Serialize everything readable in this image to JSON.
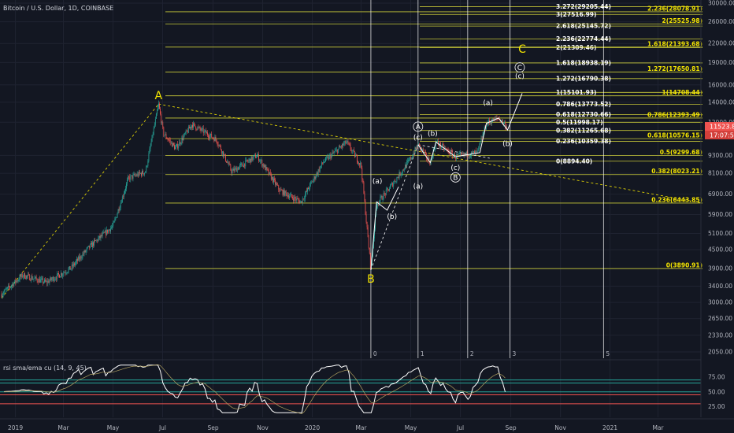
{
  "header": {
    "symbol": "Bitcoin / U.S. Dollar, 1D, COINBASE"
  },
  "price_tag": {
    "price": "11523.88",
    "countdown": "17:07:59"
  },
  "indicator": {
    "label": "rsi sma/ema cu (14, 9, 45)"
  },
  "colors": {
    "background": "#131722",
    "fib_line": "#c8c838",
    "fib_white": "#ffffff",
    "fib_yellow": "#f5e600",
    "up": "#26a69a",
    "down": "#ef5350",
    "rsi": "#ffffff",
    "rsi_upper": "#26a69a",
    "rsi_mid": "#ef5350"
  },
  "chart_data": {
    "type": "candlestick",
    "title": "Bitcoin / U.S. Dollar, 1D, COINBASE",
    "scale": "log",
    "ylim": [
      2050,
      30000
    ],
    "y_ticks": [
      "30000.00",
      "26000.00",
      "22000.00",
      "19000.00",
      "16000.00",
      "14000.00",
      "12000.00",
      "9300.00",
      "8100.00",
      "6900.00",
      "5900.00",
      "5100.00",
      "4500.00",
      "3900.00",
      "3400.00",
      "3000.00",
      "2650.00",
      "2330.00",
      "2050.00"
    ],
    "x_ticks": [
      "2019",
      "Mar",
      "May",
      "Jul",
      "Sep",
      "Nov",
      "2020",
      "Mar",
      "May",
      "Jul",
      "Sep",
      "Nov",
      "2021",
      "Mar"
    ],
    "price_path": [
      {
        "date": "2018-12-15",
        "price": 3200
      },
      {
        "date": "2019-01-10",
        "price": 3700
      },
      {
        "date": "2019-02-08",
        "price": 3500
      },
      {
        "date": "2019-03-10",
        "price": 3900
      },
      {
        "date": "2019-04-02",
        "price": 4600
      },
      {
        "date": "2019-05-01",
        "price": 5400
      },
      {
        "date": "2019-05-20",
        "price": 7800
      },
      {
        "date": "2019-06-10",
        "price": 8200
      },
      {
        "date": "2019-06-26",
        "price": 13800
      },
      {
        "date": "2019-07-02",
        "price": 11000
      },
      {
        "date": "2019-07-17",
        "price": 9800
      },
      {
        "date": "2019-08-06",
        "price": 11800
      },
      {
        "date": "2019-09-05",
        "price": 10500
      },
      {
        "date": "2019-09-24",
        "price": 8200
      },
      {
        "date": "2019-10-25",
        "price": 9300
      },
      {
        "date": "2019-11-22",
        "price": 7100
      },
      {
        "date": "2019-12-18",
        "price": 6500
      },
      {
        "date": "2020-01-14",
        "price": 8800
      },
      {
        "date": "2020-02-12",
        "price": 10300
      },
      {
        "date": "2020-03-01",
        "price": 8600
      },
      {
        "date": "2020-03-13",
        "price": 3850
      },
      {
        "date": "2020-03-20",
        "price": 6400
      },
      {
        "date": "2020-04-06",
        "price": 7300
      },
      {
        "date": "2020-04-29",
        "price": 8900
      },
      {
        "date": "2020-05-10",
        "price": 10100
      },
      {
        "date": "2020-05-25",
        "price": 8800
      },
      {
        "date": "2020-06-01",
        "price": 10300
      },
      {
        "date": "2020-06-25",
        "price": 9200
      },
      {
        "date": "2020-07-22",
        "price": 9500
      },
      {
        "date": "2020-08-02",
        "price": 11900
      },
      {
        "date": "2020-08-17",
        "price": 12400
      },
      {
        "date": "2020-08-28",
        "price": 11523.88
      }
    ],
    "fib_white": [
      {
        "label": "3.272(29205.44)",
        "value": 29205.44
      },
      {
        "label": "3(27516.99)",
        "value": 27516.99
      },
      {
        "label": "2.618(25145.72)",
        "value": 25145.72
      },
      {
        "label": "2.236(22774.44)",
        "value": 22774.44
      },
      {
        "label": "2(21309.46)",
        "value": 21309.46
      },
      {
        "label": "1.618(18938.19)",
        "value": 18938.19
      },
      {
        "label": "1.272(16790.38)",
        "value": 16790.38
      },
      {
        "label": "1(15101.93)",
        "value": 15101.93
      },
      {
        "label": "0.786(13773.52)",
        "value": 13773.52
      },
      {
        "label": "0.618(12730.66)",
        "value": 12730.66
      },
      {
        "label": "0.5(11998.17)",
        "value": 11998.17
      },
      {
        "label": "0.382(11265.68)",
        "value": 11265.68
      },
      {
        "label": "0.236(10359.38)",
        "value": 10359.38
      },
      {
        "label": "0(8894.40)",
        "value": 8894.4
      }
    ],
    "fib_yellow": [
      {
        "label": "2.236(28078.91)",
        "value": 28078.91
      },
      {
        "label": "2(25525.98)",
        "value": 25525.98
      },
      {
        "label": "1.618(21393.68)",
        "value": 21393.68
      },
      {
        "label": "1.272(17650.81)",
        "value": 17650.81
      },
      {
        "label": "1(14708.44)",
        "value": 14708.44
      },
      {
        "label": "0.786(12393.49)",
        "value": 12393.49
      },
      {
        "label": "0.618(10576.15)",
        "value": 10576.15
      },
      {
        "label": "0.5(9299.68)",
        "value": 9299.68
      },
      {
        "label": "0.382(8023.21)",
        "value": 8023.21
      },
      {
        "label": "0.236(6443.85)",
        "value": 6443.85
      },
      {
        "label": "0(3890.91)",
        "value": 3890.91
      }
    ],
    "time_zones": [
      "0",
      "1",
      "2",
      "3",
      "5"
    ],
    "wave_labels": {
      "major": [
        "A",
        "B",
        "C"
      ],
      "minor": [
        "(a)",
        "(b)",
        "(c)"
      ],
      "circled": [
        "A",
        "B",
        "C"
      ]
    },
    "rsi": {
      "ticks": [
        "75.00",
        "50.00",
        "25.00"
      ],
      "levels": [
        70,
        65,
        50,
        45,
        30
      ]
    }
  }
}
